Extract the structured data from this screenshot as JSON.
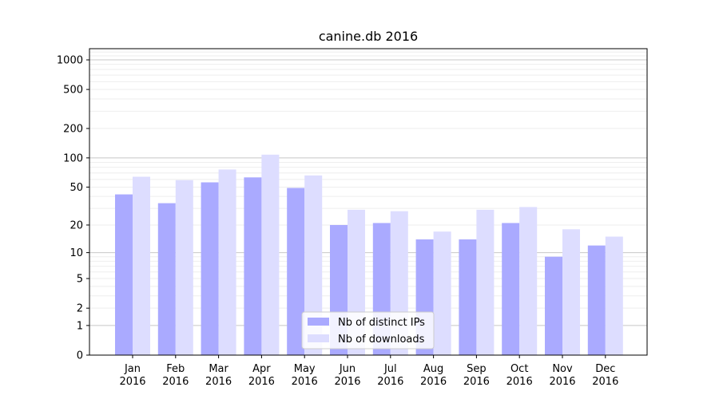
{
  "chart_data": {
    "type": "bar",
    "title": "canine.db 2016",
    "xlabel": "",
    "ylabel": "",
    "y_scale": "symlog",
    "ylim": [
      0,
      1300
    ],
    "y_ticks": [
      0,
      1,
      2,
      5,
      10,
      20,
      50,
      100,
      200,
      500,
      1000
    ],
    "y_tick_labels": [
      "0",
      "1",
      "2",
      "5",
      "10",
      "20",
      "50",
      "100",
      "200",
      "500",
      "1000"
    ],
    "categories": [
      [
        "Jan",
        "2016"
      ],
      [
        "Feb",
        "2016"
      ],
      [
        "Mar",
        "2016"
      ],
      [
        "Apr",
        "2016"
      ],
      [
        "May",
        "2016"
      ],
      [
        "Jun",
        "2016"
      ],
      [
        "Jul",
        "2016"
      ],
      [
        "Aug",
        "2016"
      ],
      [
        "Sep",
        "2016"
      ],
      [
        "Oct",
        "2016"
      ],
      [
        "Nov",
        "2016"
      ],
      [
        "Dec",
        "2016"
      ]
    ],
    "series": [
      {
        "name": "Nb of distinct IPs",
        "color": "#aaaaff",
        "values": [
          42,
          34,
          56,
          63,
          49,
          20,
          21,
          14,
          14,
          21,
          9,
          12
        ]
      },
      {
        "name": "Nb of downloads",
        "color": "#ddddff",
        "values": [
          64,
          59,
          76,
          108,
          66,
          29,
          28,
          17,
          29,
          31,
          18,
          15
        ]
      }
    ],
    "grid": true,
    "legend_position": "bottom-center"
  }
}
